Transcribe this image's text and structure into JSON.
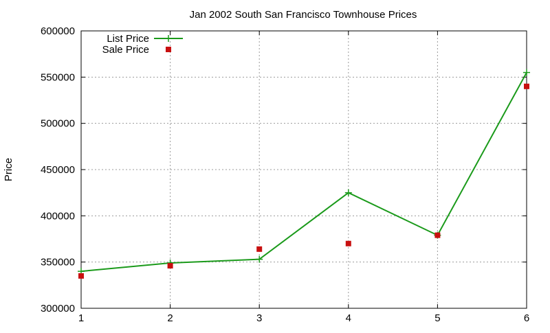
{
  "chart_data": {
    "type": "line",
    "title": "Jan 2002 South San Francisco Townhouse Prices",
    "xlabel": "",
    "ylabel": "Price",
    "x": [
      1,
      2,
      3,
      4,
      5,
      6
    ],
    "xlim": [
      1,
      6
    ],
    "ylim": [
      300000,
      600000
    ],
    "xticks": [
      "1",
      "2",
      "3",
      "4",
      "5",
      "6"
    ],
    "yticks": [
      "300000",
      "350000",
      "400000",
      "450000",
      "500000",
      "550000",
      "600000"
    ],
    "grid": true,
    "legend_position": "top-left",
    "series": [
      {
        "name": "List Price",
        "style": "line+cross",
        "color": "#1a9a1a",
        "values": [
          340000,
          349000,
          353000,
          425000,
          379000,
          555000
        ]
      },
      {
        "name": "Sale Price",
        "style": "square",
        "color": "#c81010",
        "values": [
          335000,
          346000,
          364000,
          370000,
          379000,
          540000
        ]
      }
    ]
  }
}
